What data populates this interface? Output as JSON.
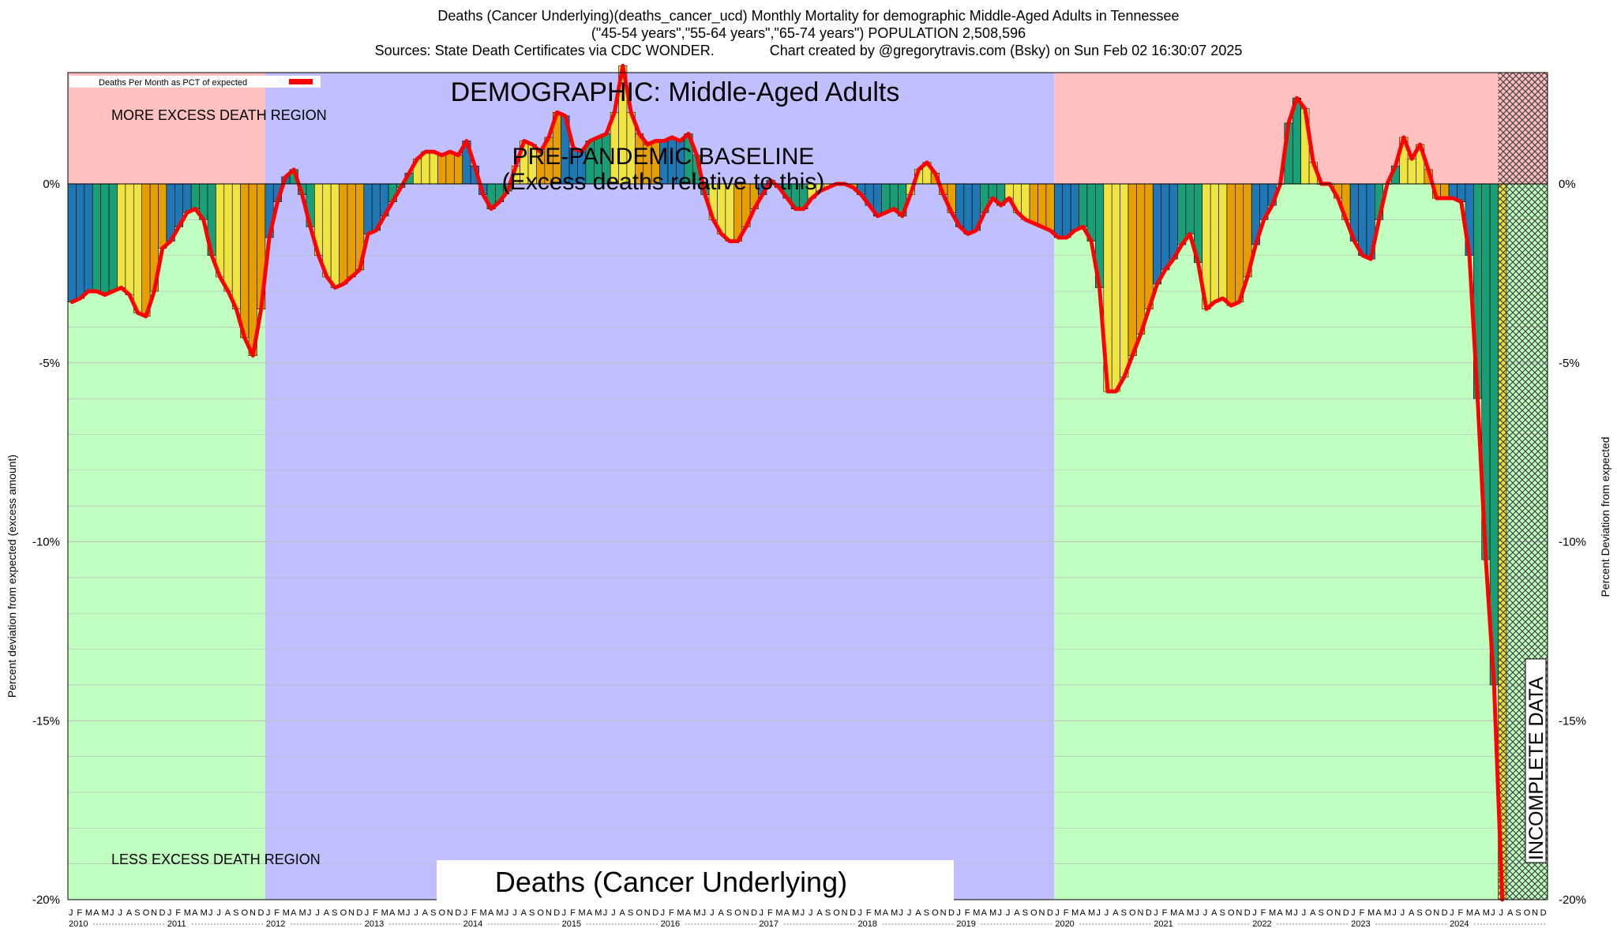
{
  "header": {
    "line1": "Deaths (Cancer Underlying)(deaths_cancer_ucd) Monthly Mortality for demographic Middle-Aged Adults in Tennessee",
    "line2": "(\"45-54 years\",\"55-64 years\",\"65-74 years\") POPULATION 2,508,596",
    "line3": "Sources: State Death Certificates via CDC WONDER.              Chart created by @gregorytravis.com (Bsky) on Sun Feb 02 16:30:07 2025"
  },
  "legend": {
    "label": "Deaths Per Month as PCT of expected",
    "color": "#ff0000"
  },
  "annotations": {
    "demographic": "DEMOGRAPHIC: Middle-Aged Adults",
    "baseline_line1": "PRE-PANDEMIC BASELINE",
    "baseline_line2": "(Excess deaths relative to this)",
    "more_region": "MORE EXCESS DEATH REGION",
    "less_region": "LESS EXCESS DEATH REGION",
    "incomplete": "INCOMPLETE DATA",
    "bottom_title": "Deaths (Cancer Underlying)"
  },
  "axes": {
    "ylabel_left": "Percent deviation from expected (excess amount)",
    "ylabel_right": "Percent Deviation from expected",
    "yticks": [
      "0%",
      "-5%",
      "-10%",
      "-15%",
      "-20%"
    ],
    "month_letters": [
      "J",
      "F",
      "M",
      "A",
      "M",
      "J",
      "J",
      "A",
      "S",
      "O",
      "N",
      "D"
    ],
    "years": [
      "2010",
      "2011",
      "2012",
      "2013",
      "2014",
      "2015",
      "2016",
      "2017",
      "2018",
      "2019",
      "2020",
      "2021",
      "2022",
      "2023",
      "2024"
    ]
  },
  "colors": {
    "region_more": "#ffc0c0",
    "region_less": "#c0ffc0",
    "region_baseline": "#c0c0ff",
    "bar_q1": "#1f77b4",
    "bar_q2": "#1a9e77",
    "bar_q3": "#f0e442",
    "bar_q4": "#e69f00",
    "line": "#ff0000",
    "incomplete": "#333333"
  },
  "chart_data": {
    "type": "bar",
    "title": "Deaths (Cancer Underlying)",
    "x_start": "2010-01",
    "x_end": "2024-12",
    "ylabel": "Percent deviation from expected (excess amount)",
    "ylim": [
      -20,
      3.2
    ],
    "yticks": [
      0,
      -5,
      -10,
      -15,
      -20
    ],
    "baseline_period": [
      "2012-01",
      "2019-12"
    ],
    "incomplete_period": [
      "2024-07",
      "2024-12"
    ],
    "series": [
      {
        "name": "Deaths Per Month as PCT of expected",
        "values": [
          -3.3,
          -3.2,
          -3.0,
          -3.0,
          -3.1,
          -3.0,
          -2.9,
          -3.1,
          -3.6,
          -3.7,
          -3.0,
          -1.8,
          -1.6,
          -1.2,
          -0.8,
          -0.7,
          -1.0,
          -2.0,
          -2.6,
          -3.0,
          -3.5,
          -4.3,
          -4.8,
          -3.5,
          -1.5,
          -0.5,
          0.2,
          0.4,
          -0.3,
          -1.2,
          -2.0,
          -2.6,
          -2.9,
          -2.8,
          -2.6,
          -2.4,
          -1.4,
          -1.3,
          -0.9,
          -0.5,
          -0.1,
          0.3,
          0.7,
          0.9,
          0.9,
          0.8,
          0.9,
          0.8,
          1.2,
          0.5,
          -0.3,
          -0.7,
          -0.5,
          -0.2,
          0.5,
          1.2,
          1.1,
          0.9,
          1.3,
          2.0,
          1.9,
          1.0,
          0.9,
          1.2,
          1.3,
          1.4,
          2.0,
          3.3,
          2.0,
          1.4,
          1.1,
          1.2,
          1.2,
          1.3,
          1.2,
          1.4,
          0.8,
          -0.3,
          -1.0,
          -1.4,
          -1.6,
          -1.6,
          -1.2,
          -0.7,
          -0.3,
          0.1,
          -0.1,
          -0.4,
          -0.7,
          -0.7,
          -0.4,
          -0.2,
          -0.1,
          0.0,
          0.0,
          -0.1,
          -0.3,
          -0.6,
          -0.9,
          -0.8,
          -0.7,
          -0.9,
          -0.3,
          0.4,
          0.6,
          0.3,
          -0.3,
          -0.8,
          -1.2,
          -1.4,
          -1.3,
          -0.8,
          -0.4,
          -0.6,
          -0.4,
          -0.8,
          -1.0,
          -1.1,
          -1.2,
          -1.3,
          -1.5,
          -1.5,
          -1.3,
          -1.2,
          -1.6,
          -2.9,
          -5.8,
          -5.8,
          -5.4,
          -4.8,
          -4.2,
          -3.5,
          -2.8,
          -2.4,
          -2.1,
          -1.7,
          -1.4,
          -2.2,
          -3.5,
          -3.3,
          -3.2,
          -3.4,
          -3.3,
          -2.6,
          -1.7,
          -1.0,
          -0.6,
          0.0,
          1.7,
          2.4,
          2.1,
          0.6,
          0.0,
          0.0,
          -0.4,
          -1.0,
          -1.6,
          -2.0,
          -2.1,
          -1.0,
          0.0,
          0.5,
          1.3,
          0.7,
          1.1,
          0.4,
          -0.4,
          -0.4,
          -0.4,
          -0.5,
          -2.0,
          -6.0,
          -10.5,
          -14.0,
          -20.0
        ]
      }
    ],
    "legend_position": "top-left"
  }
}
